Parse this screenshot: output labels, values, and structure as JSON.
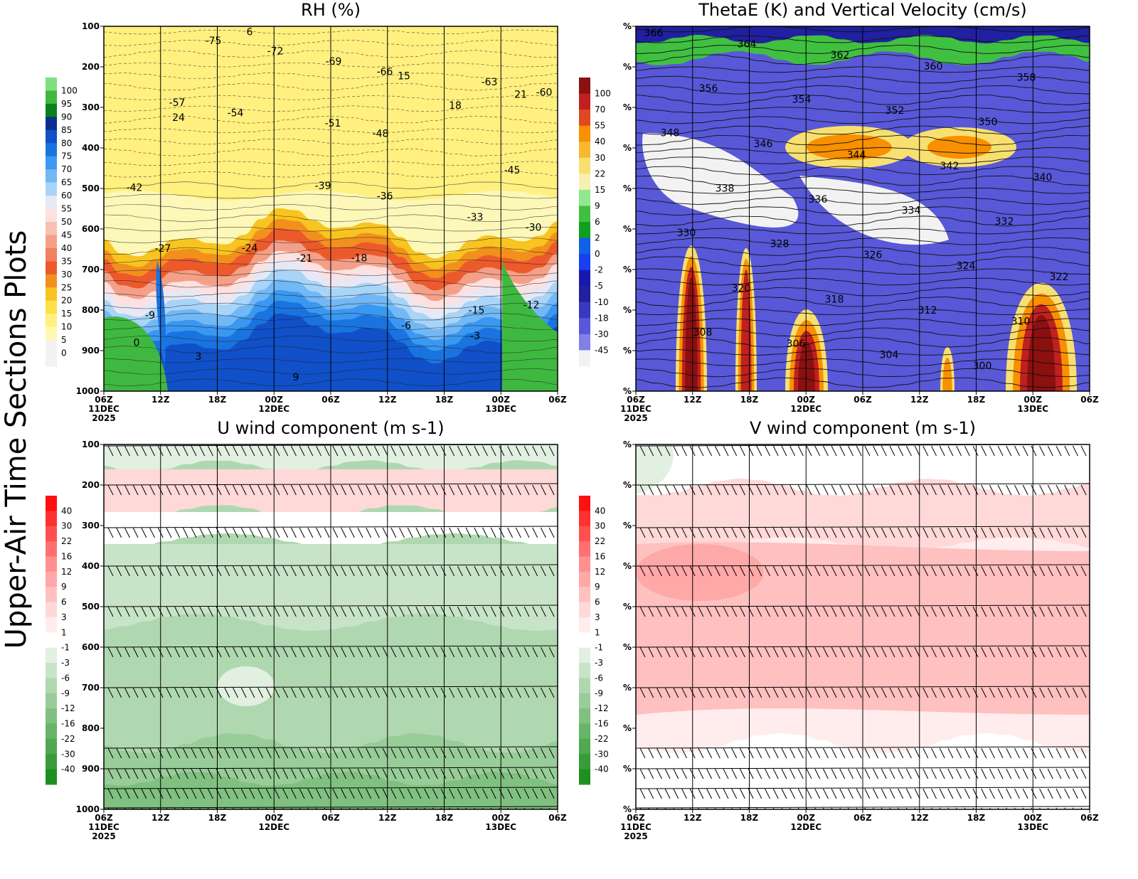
{
  "suptitle": "Upper-Air Time Sections Plots",
  "x_ticks": [
    "06Z",
    "12Z",
    "18Z",
    "00Z",
    "06Z",
    "12Z",
    "18Z",
    "00Z",
    "06Z"
  ],
  "x_dates": [
    {
      "at": 0,
      "line1": "11DEC",
      "line2": "2025"
    },
    {
      "at": 3,
      "line1": "12DEC",
      "line2": ""
    },
    {
      "at": 7,
      "line1": "13DEC",
      "line2": ""
    }
  ],
  "pressure_ticks": [
    "100",
    "200",
    "300",
    "400",
    "500",
    "600",
    "700",
    "800",
    "900",
    "1000"
  ],
  "chart_data": [
    {
      "type": "heatmap",
      "title": "RH (%)",
      "y_tick_labels": [
        "100",
        "200",
        "300",
        "400",
        "500",
        "600",
        "700",
        "800",
        "900",
        "1000"
      ],
      "colorbar": {
        "labels": [
          "100",
          "95",
          "90",
          "85",
          "80",
          "75",
          "70",
          "65",
          "60",
          "55",
          "50",
          "45",
          "40",
          "35",
          "30",
          "25",
          "20",
          "15",
          "10",
          "5",
          "0"
        ],
        "colors": [
          "#7fe07f",
          "#3fb83f",
          "#0a7f1e",
          "#0a2f8f",
          "#1050c8",
          "#1a74e0",
          "#3a98f0",
          "#72b8f5",
          "#a8d4f8",
          "#e8e8f4",
          "#fde0e0",
          "#f8c0b0",
          "#f4a088",
          "#f08060",
          "#ec5a2c",
          "#f2901e",
          "#f8c420",
          "#fce048",
          "#fff080",
          "#fff8b0",
          "#f2f2f2",
          "#f2f2f2"
        ]
      },
      "temperature_contour_labels": [
        "-75",
        "-72",
        "-69",
        "-66",
        "-63",
        "-60",
        "-57",
        "-54",
        "-51",
        "-48",
        "-45",
        "-42",
        "-39",
        "-36",
        "-33",
        "-30",
        "-27",
        "-24",
        "-21",
        "-18",
        "-15",
        "-12",
        "-9",
        "-6",
        "-3",
        "0",
        "3",
        "6",
        "9",
        "15",
        "18",
        "21",
        "24"
      ]
    },
    {
      "type": "heatmap",
      "title": "ThetaE (K) and Vertical Velocity (cm/s)",
      "y_tick_labels": [
        "%",
        "%",
        "%",
        "%",
        "%",
        "%",
        "%",
        "%",
        "%",
        "%"
      ],
      "colorbar": {
        "labels": [
          "100",
          "70",
          "55",
          "40",
          "30",
          "22",
          "15",
          "9",
          "6",
          "2",
          "0",
          "-2",
          "-5",
          "-10",
          "-18",
          "-30",
          "-45"
        ],
        "colors": [
          "#8b1010",
          "#c02020",
          "#e04820",
          "#f89000",
          "#f8b830",
          "#f8e070",
          "#f8f0b0",
          "#90e890",
          "#40c040",
          "#10a020",
          "#1060e8",
          "#1840f0",
          "#1818b0",
          "#2020a0",
          "#3838c0",
          "#5858d8",
          "#8080e8",
          "#f2f2f2"
        ]
      },
      "thetae_contour_labels": [
        "366",
        "364",
        "362",
        "360",
        "358",
        "356",
        "354",
        "352",
        "350",
        "348",
        "346",
        "344",
        "342",
        "340",
        "338",
        "336",
        "334",
        "332",
        "330",
        "328",
        "326",
        "324",
        "322",
        "320",
        "318",
        "312",
        "310",
        "308",
        "306",
        "304",
        "300"
      ]
    },
    {
      "type": "heatmap",
      "title": "U wind component (m s-1)",
      "y_tick_labels": [
        "100",
        "200",
        "300",
        "400",
        "500",
        "600",
        "700",
        "800",
        "900",
        "1000"
      ],
      "colorbar": {
        "labels": [
          "40",
          "30",
          "22",
          "16",
          "12",
          "9",
          "6",
          "3",
          "1",
          "-1",
          "-3",
          "-6",
          "-9",
          "-12",
          "-16",
          "-22",
          "-30",
          "-40"
        ],
        "colors": [
          "#ff1010",
          "#ff3030",
          "#ff5050",
          "#ff7070",
          "#ff9090",
          "#ffa8a8",
          "#ffc0c0",
          "#ffd8d8",
          "#ffecec",
          "#ffffff",
          "#e2f0e2",
          "#c8e4c8",
          "#b0d8b0",
          "#98cc98",
          "#80c080",
          "#68b468",
          "#50a850",
          "#389c38",
          "#1f8f1f"
        ]
      }
    },
    {
      "type": "heatmap",
      "title": "V wind component (m s-1)",
      "y_tick_labels": [
        "%",
        "%",
        "%",
        "%",
        "%",
        "%",
        "%",
        "%",
        "%",
        "%"
      ],
      "colorbar": {
        "labels": [
          "40",
          "30",
          "22",
          "16",
          "12",
          "9",
          "6",
          "3",
          "1",
          "-1",
          "-3",
          "-6",
          "-9",
          "-12",
          "-16",
          "-22",
          "-30",
          "-40"
        ],
        "colors": [
          "#ff1010",
          "#ff3030",
          "#ff5050",
          "#ff7070",
          "#ff9090",
          "#ffa8a8",
          "#ffc0c0",
          "#ffd8d8",
          "#ffecec",
          "#ffffff",
          "#e2f0e2",
          "#c8e4c8",
          "#b0d8b0",
          "#98cc98",
          "#80c080",
          "#68b468",
          "#50a850",
          "#389c38",
          "#1f8f1f"
        ]
      }
    }
  ]
}
